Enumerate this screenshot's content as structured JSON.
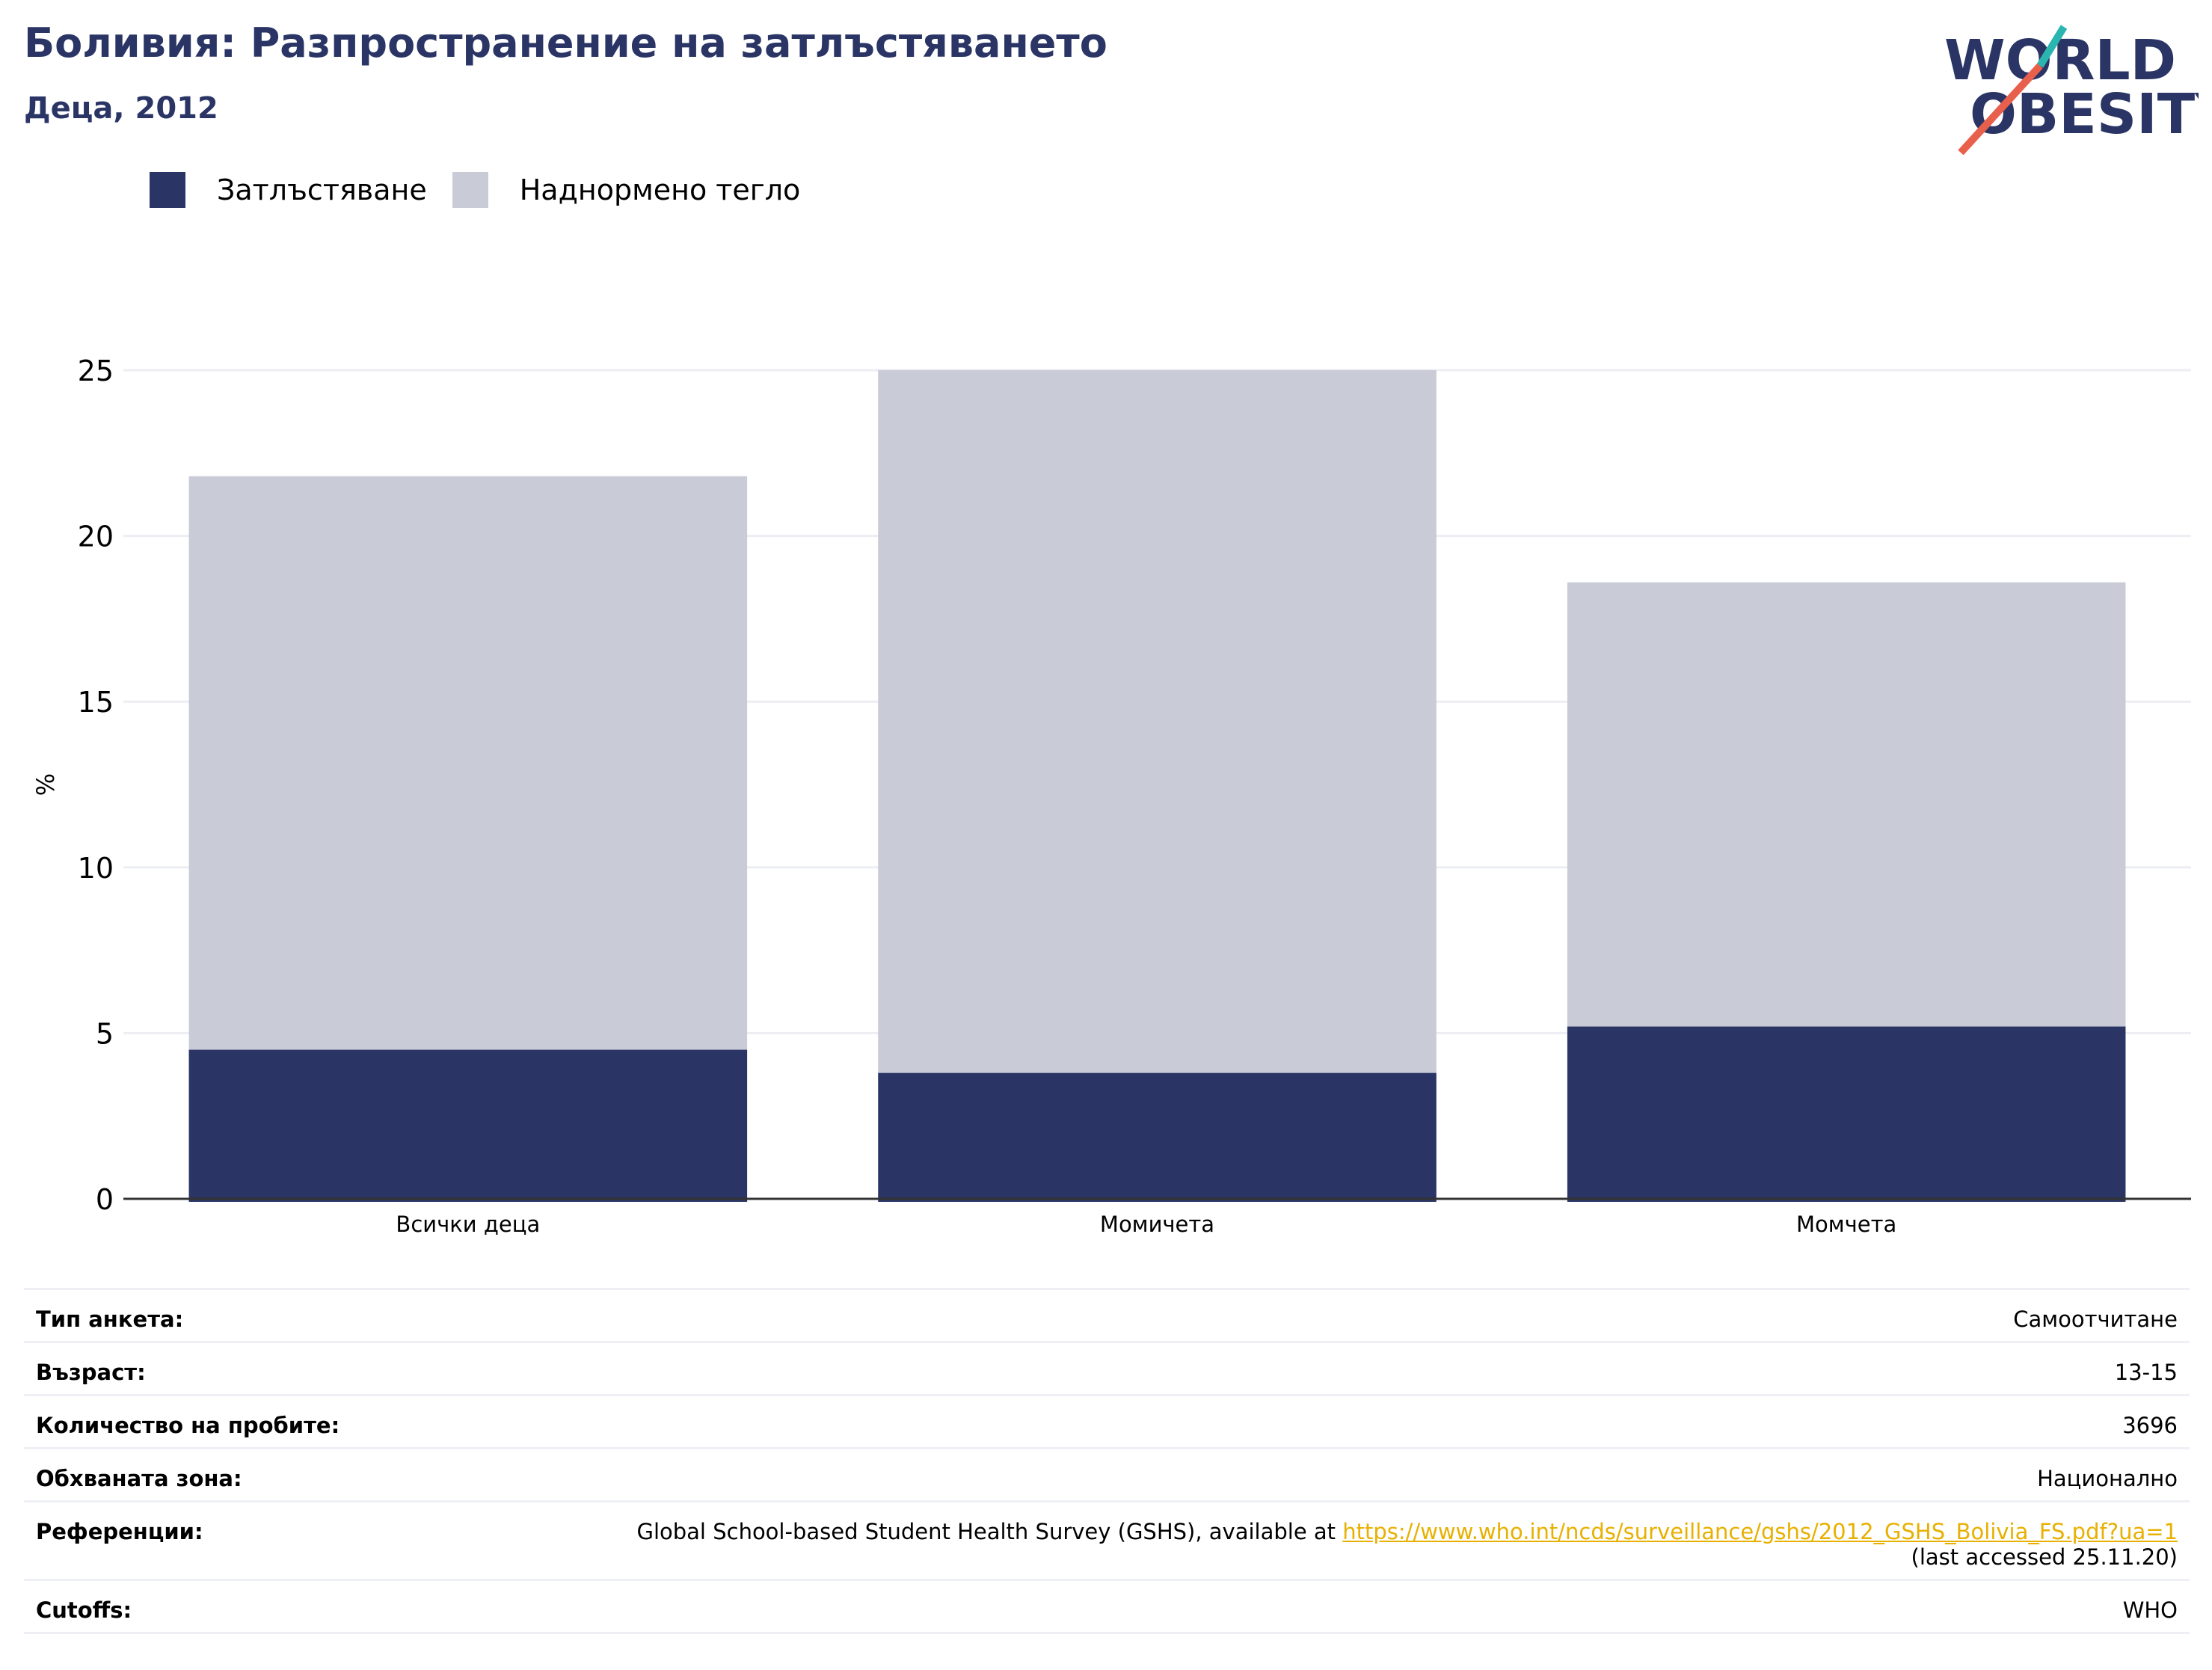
{
  "header": {
    "title": "Боливия: Разпространение на затлъстяването",
    "subtitle": "Деца, 2012"
  },
  "logo": {
    "line1": "WORLD",
    "line2": "OBESITY",
    "accent_colors": [
      "#2bb5b0",
      "#e8604c"
    ]
  },
  "legend": [
    {
      "label": "Затлъстяване",
      "color": "#2a3565"
    },
    {
      "label": "Наднормено тегло",
      "color": "#c9cbd7"
    }
  ],
  "chart_data": {
    "type": "bar",
    "stacked": true,
    "categories": [
      "Всички деца",
      "Момичета",
      "Момчета"
    ],
    "series": [
      {
        "name": "Затлъстяване",
        "values": [
          4.5,
          3.8,
          5.2
        ],
        "color": "#2a3565"
      },
      {
        "name": "Наднормено тегло",
        "values": [
          17.3,
          21.2,
          13.4
        ],
        "color": "#c9cbd7"
      }
    ],
    "ylabel": "%",
    "ylim": [
      0,
      25
    ],
    "yticks": [
      0,
      5,
      10,
      15,
      20,
      25
    ],
    "grid": true,
    "legend_position": "top-left"
  },
  "meta": {
    "rows": [
      {
        "label": "Тип анкета:",
        "value": "Самоотчитане"
      },
      {
        "label": "Възраст:",
        "value": "13-15"
      },
      {
        "label": "Количество на пробите:",
        "value": "3696"
      },
      {
        "label": "Обхваната зона:",
        "value": "Национално"
      }
    ],
    "reference": {
      "label": "Референции:",
      "text": "Global School-based Student Health Survey (GSHS), available at ",
      "link": "https://www.who.int/ncds/surveillance/gshs/2012_GSHS_Bolivia_FS.pdf?ua=1",
      "tail": "(last accessed 25.11.20)"
    },
    "cutoffs": {
      "label": "Cutoffs:",
      "value": "WHO"
    }
  }
}
